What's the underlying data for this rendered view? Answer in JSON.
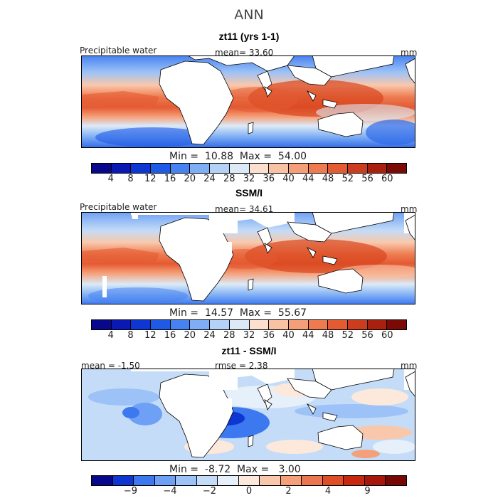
{
  "title": "ANN",
  "colors": {
    "abs_scale": [
      "#08088c",
      "#0a18b4",
      "#0d36d2",
      "#1f5ae6",
      "#4682f0",
      "#7eaef5",
      "#b4d2f7",
      "#dceaf7",
      "#fbe0d0",
      "#f8c2a4",
      "#f59e77",
      "#ee7b50",
      "#e45a32",
      "#cc3c1e",
      "#a8200e",
      "#7a0a05"
    ],
    "diff_scale": [
      "#08088c",
      "#0d36d2",
      "#3c78f0",
      "#6ea0f5",
      "#9cc2f7",
      "#c4dcf7",
      "#e6f0fa",
      "#fde8dc",
      "#f9c8ac",
      "#f4a07a",
      "#ec7650",
      "#e04e28",
      "#c8280e",
      "#a8180a",
      "#780804"
    ]
  },
  "panels": [
    {
      "title": "zt11 (yrs 1-1)",
      "left_label": "Precipitable water",
      "center_label": "mean=  33.60",
      "right_label": "mm",
      "minmax": "Min =  10.88  Max =  54.00",
      "tick_labels": [
        "4",
        "8",
        "12",
        "16",
        "20",
        "24",
        "28",
        "32",
        "36",
        "40",
        "44",
        "48",
        "52",
        "56",
        "60"
      ]
    },
    {
      "title": "SSM/I",
      "left_label": "Precipitable water",
      "center_label": "mean=  34.61",
      "right_label": "mm",
      "minmax": "Min =  14.57  Max =  55.67",
      "tick_labels": [
        "4",
        "8",
        "12",
        "16",
        "20",
        "24",
        "28",
        "32",
        "36",
        "40",
        "44",
        "48",
        "52",
        "56",
        "60"
      ]
    },
    {
      "title": "zt11 - SSM/I",
      "left_label": "mean =  -1.50",
      "center_label": "rmse =   2.38",
      "right_label": "mm",
      "minmax": "Min =  -8.72  Max =   3.00",
      "tick_labels": [
        "−9",
        "−4",
        "−2",
        "0",
        "2",
        "4",
        "9"
      ]
    }
  ]
}
